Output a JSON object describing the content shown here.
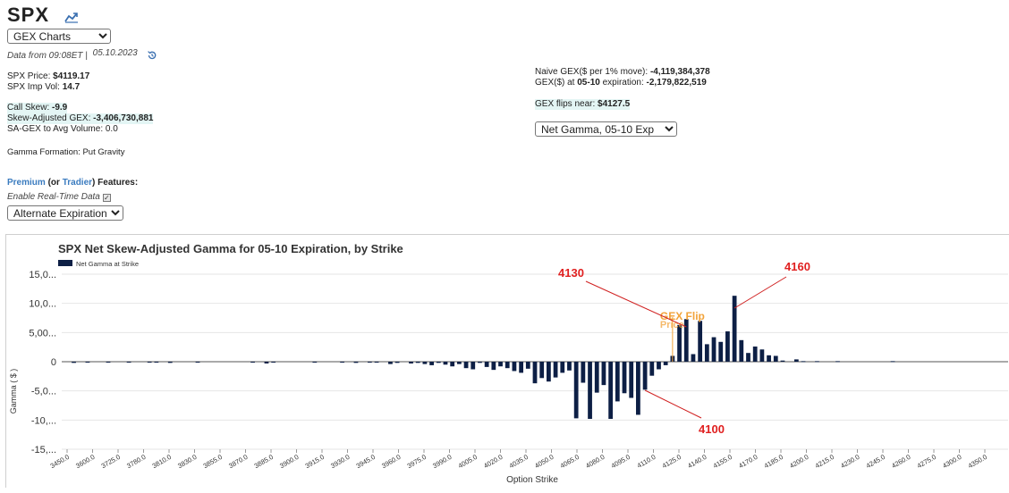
{
  "header": {
    "title": "SPX",
    "view_select": "GEX Charts",
    "data_from": "Data from 09:08ET |",
    "data_date": "05.10.2023"
  },
  "stats": {
    "price_label": "SPX Price: ",
    "price_value": "$4119.17",
    "impvol_label": "SPX Imp Vol: ",
    "impvol_value": "14.7",
    "callskew_label": "Call Skew: ",
    "callskew_value": "-9.9",
    "skewgex_label": "Skew-Adjusted GEX: ",
    "skewgex_value": "-3,406,730,881",
    "sagex_text": "SA-GEX to Avg Volume: 0.0",
    "gamma_formation": "Gamma Formation: Put Gravity"
  },
  "right_stats": {
    "naive_label": "Naive GEX($ per 1% move): ",
    "naive_value": "-4,119,384,378",
    "gexat_label_pre": "GEX($) at ",
    "gexat_date": "05-10",
    "gexat_label_post": " expiration: ",
    "gexat_value": "-2,179,822,519",
    "flips_label": "GEX flips near: ",
    "flips_value": "$4127.5",
    "net_gamma_select": "Net Gamma, 05-10 Exp"
  },
  "features": {
    "premium": "Premium",
    "or_open": " (or ",
    "trader": "Tradier",
    "features_tail": ") Features:",
    "realtime": "Enable Real-Time Data",
    "realtime_check": "✓",
    "alt_expiration": "Alternate Expiration"
  },
  "colors": {
    "bar": "#0d1f45",
    "flip_line": "#f2a33a",
    "annotation": "#e02020",
    "annotation_line": "#d02020"
  },
  "chart_data": {
    "type": "bar",
    "title": "SPX Net Skew-Adjusted Gamma for 05-10 Expiration, by Strike",
    "legend": "Net Gamma at Strike",
    "legend_position": "top-left",
    "xlabel": "Option Strike",
    "ylabel": "Gamma ( $ )",
    "ylim": [
      -15,
      15
    ],
    "y_ticks": [
      15,
      10,
      5,
      0,
      -5,
      -10,
      -15
    ],
    "y_tick_labels": [
      "15,0...",
      "10,0...",
      "5,00...",
      "0",
      "-5,0...",
      "-10,...",
      "-15,..."
    ],
    "x_tick_labels": [
      "3450.0",
      "3600.0",
      "3725.0",
      "3780.0",
      "3810.0",
      "3830.0",
      "3855.0",
      "3870.0",
      "3885.0",
      "3900.0",
      "3915.0",
      "3930.0",
      "3945.0",
      "3960.0",
      "3975.0",
      "3990.0",
      "4005.0",
      "4020.0",
      "4035.0",
      "4050.0",
      "4065.0",
      "4080.0",
      "4095.0",
      "4110.0",
      "4125.0",
      "4140.0",
      "4155.0",
      "4170.0",
      "4185.0",
      "4200.0",
      "4215.0",
      "4230.0",
      "4245.0",
      "4260.0",
      "4275.0",
      "4300.0",
      "4350.0"
    ],
    "values": [
      0,
      -0.2,
      0,
      -0.1,
      0,
      0,
      -0.1,
      0,
      0,
      -0.1,
      0,
      0,
      -0.1,
      -0.1,
      0,
      -0.2,
      0,
      0,
      0,
      -0.1,
      0,
      0,
      0,
      0,
      0,
      0,
      0,
      -0.1,
      0,
      -0.3,
      -0.1,
      0,
      0,
      0,
      0,
      0,
      -0.1,
      0,
      0,
      0,
      -0.1,
      0,
      -0.2,
      0,
      -0.1,
      -0.1,
      0,
      -0.4,
      -0.2,
      0,
      -0.3,
      -0.2,
      -0.4,
      -0.6,
      -0.2,
      -0.5,
      -0.8,
      -0.4,
      -1.1,
      -1.3,
      -0.2,
      -0.9,
      -1.4,
      -0.8,
      -1.1,
      -1.6,
      -1.9,
      -1.2,
      -3.7,
      -2.8,
      -3.4,
      -2.7,
      -1.9,
      -1.5,
      -9.7,
      -3.6,
      -9.8,
      -5.3,
      -4.0,
      -9.8,
      -6.8,
      -5.4,
      -6.2,
      -9.1,
      -4.8,
      -2.4,
      -1.3,
      -0.6,
      1.0,
      6.3,
      7.3,
      1.3,
      7.0,
      3.0,
      4.2,
      3.4,
      5.2,
      11.3,
      3.7,
      1.5,
      2.6,
      2.1,
      1.1,
      1.0,
      0.2,
      0,
      0.4,
      0.1,
      0,
      0.1,
      0,
      0,
      0.1,
      0,
      0,
      0,
      0,
      0,
      0,
      0,
      0.1,
      0,
      0,
      0,
      0,
      0,
      0,
      0,
      0,
      0,
      0,
      0,
      0,
      0,
      0,
      0,
      0
    ],
    "flip": {
      "label": "GEX Flip",
      "sublabel": "Price",
      "bar_index": 88
    },
    "annotations": [
      {
        "text": "4130",
        "bar_index": 90
      },
      {
        "text": "4160",
        "bar_index": 97
      },
      {
        "text": "4100",
        "bar_index": 84
      }
    ]
  }
}
